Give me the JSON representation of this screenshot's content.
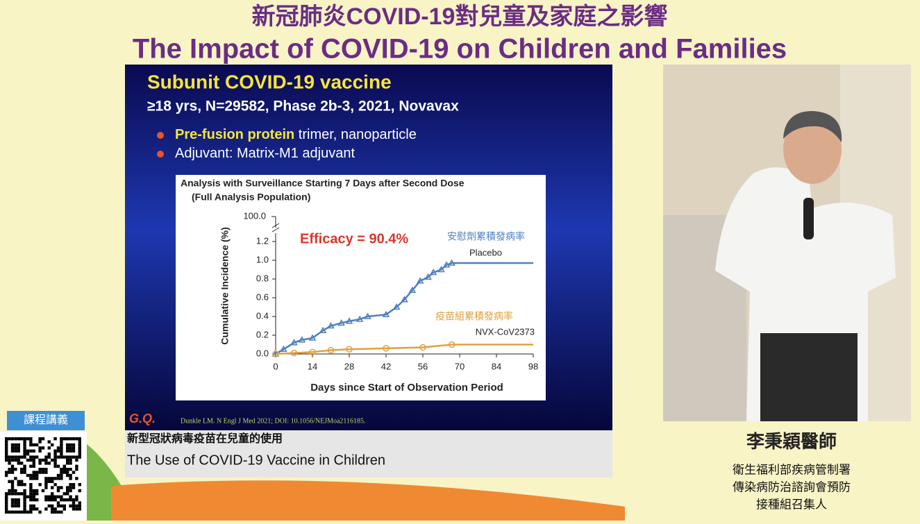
{
  "header": {
    "title_zh": "新冠肺炎COVID-19對兒童及家庭之影響",
    "title_en": "The Impact of COVID-19 on Children and Families"
  },
  "slide": {
    "title": "Subunit COVID-19 vaccine",
    "subtitle": "≥18 yrs, N=29582, Phase 2b-3, 2021, Novavax",
    "bullets": [
      {
        "bold": "Pre-fusion protein",
        "rest": " trimer, nanoparticle"
      },
      {
        "bold": "",
        "rest": "Adjuvant: Matrix-M1 adjuvant"
      }
    ],
    "logo": "G.Q.",
    "citation": "Dunkle LM. N Engl J Med 2021; DOI: 10.1056/NEJMoa2116185."
  },
  "chart_data": {
    "type": "line",
    "title": "Analysis with Surveillance Starting 7 Days after Second Dose",
    "subtitle": "(Full Analysis Population)",
    "y_label": "Cumulative Incidence (%)",
    "x_label": "Days since Start of Observation Period",
    "annotation": "Efficacy = 90.4%",
    "axis_break_label": "100.0",
    "xlim": [
      0,
      98
    ],
    "xticks": [
      0,
      14,
      28,
      42,
      56,
      70,
      84,
      98
    ],
    "ylim": [
      0,
      1.2
    ],
    "yticks": [
      {
        "value": 0,
        "label": "0.0"
      },
      0.2,
      0.4,
      0.6,
      0.8,
      {
        "value": 1,
        "label": "1.0"
      },
      1.2
    ],
    "series": [
      {
        "name": "Placebo",
        "label_zh": "安慰劑累積發病率",
        "color": "#4f7fc0",
        "x": [
          0,
          3,
          7,
          10,
          14,
          18,
          21,
          25,
          28,
          32,
          35,
          42,
          46,
          49,
          52,
          55,
          58,
          60,
          63,
          65,
          67,
          98
        ],
        "values": [
          0,
          0.05,
          0.12,
          0.15,
          0.17,
          0.25,
          0.3,
          0.33,
          0.35,
          0.37,
          0.4,
          0.42,
          0.5,
          0.58,
          0.68,
          0.78,
          0.82,
          0.87,
          0.9,
          0.95,
          0.97,
          0.97
        ]
      },
      {
        "name": "NVX-CoV2373",
        "label_zh": "疫苗組累積發病率",
        "color": "#e0a040",
        "x": [
          0,
          7,
          14,
          21,
          28,
          42,
          56,
          67,
          98
        ],
        "values": [
          0,
          0.01,
          0.02,
          0.04,
          0.05,
          0.06,
          0.07,
          0.1,
          0.1
        ]
      }
    ]
  },
  "caption": {
    "zh": "新型冠狀病毒疫苗在兒童的使用",
    "en": "The Use of COVID-19 Vaccine in Children"
  },
  "speaker": {
    "name": "李秉穎醫師",
    "affiliation": [
      "衛生福利部疾病管制署",
      "傳染病防治諮詢會預防",
      "接種組召集人"
    ]
  },
  "handout": {
    "label": "課程講義"
  }
}
